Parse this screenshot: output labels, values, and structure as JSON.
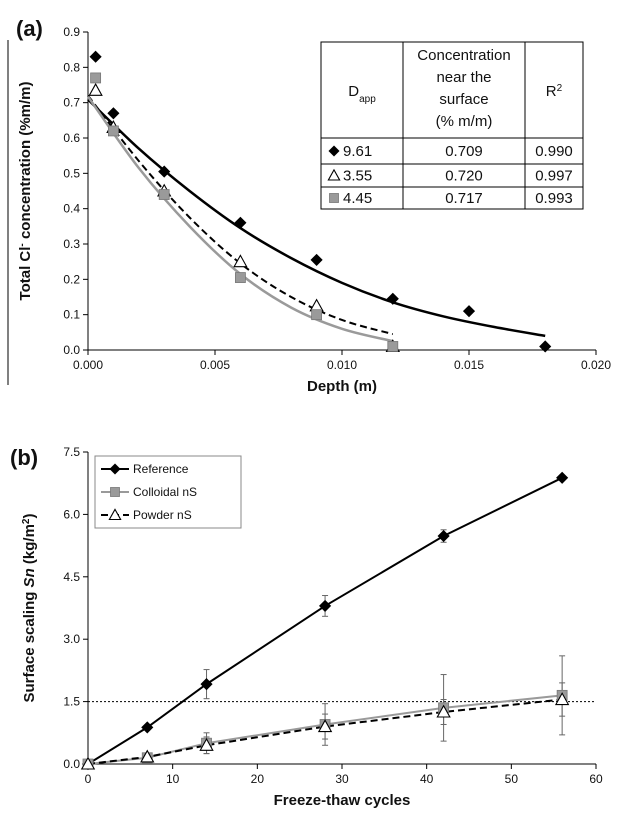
{
  "chart_data": [
    {
      "type": "scatter",
      "panel_label": "(a)",
      "xlabel": "Depth (m)",
      "ylabel": {
        "pre": "Total Cl",
        "sup": "-",
        "post": " concentration (%m/m)"
      },
      "xlim": [
        0,
        0.02
      ],
      "ylim": [
        0,
        0.9
      ],
      "xticks": [
        "0.000",
        "0.005",
        "0.010",
        "0.015",
        "0.020"
      ],
      "yticks": [
        "0.0",
        "0.1",
        "0.2",
        "0.3",
        "0.4",
        "0.5",
        "0.6",
        "0.7",
        "0.8",
        "0.9"
      ],
      "grid": false,
      "series": [
        {
          "marker": "diamond",
          "color": "#000000",
          "line_style": "solid",
          "line_width": 2.5,
          "x": [
            0.0003,
            0.001,
            0.003,
            0.006,
            0.009,
            0.012,
            0.015,
            0.018
          ],
          "y": [
            0.83,
            0.67,
            0.505,
            0.36,
            0.255,
            0.145,
            0.11,
            0.01
          ],
          "fit": {
            "x": [
              0,
              0.002,
              0.004,
              0.006,
              0.008,
              0.01,
              0.012,
              0.014,
              0.016,
              0.018
            ],
            "y": [
              0.709,
              0.57,
              0.45,
              0.345,
              0.26,
              0.19,
              0.135,
              0.095,
              0.065,
              0.04
            ]
          }
        },
        {
          "marker": "triangle",
          "color": "#000000",
          "line_style": "dashed",
          "line_width": 2,
          "x": [
            0.0003,
            0.001,
            0.003,
            0.006,
            0.009,
            0.012
          ],
          "y": [
            0.735,
            0.63,
            0.45,
            0.25,
            0.125,
            0.01
          ],
          "fit": {
            "x": [
              0,
              0.002,
              0.004,
              0.006,
              0.008,
              0.01,
              0.012
            ],
            "y": [
              0.72,
              0.535,
              0.375,
              0.245,
              0.15,
              0.085,
              0.045
            ]
          }
        },
        {
          "marker": "square",
          "color": "#9a9a9a",
          "line_style": "solid",
          "line_width": 2.5,
          "x": [
            0.0003,
            0.001,
            0.003,
            0.006,
            0.009,
            0.012
          ],
          "y": [
            0.77,
            0.62,
            0.44,
            0.205,
            0.1,
            0.01
          ],
          "fit": {
            "x": [
              0,
              0.002,
              0.004,
              0.006,
              0.008,
              0.01,
              0.012
            ],
            "y": [
              0.717,
              0.515,
              0.35,
              0.215,
              0.12,
              0.06,
              0.025
            ]
          }
        }
      ],
      "table": {
        "header": {
          "dapp_main": "D",
          "dapp_sub": "app",
          "conc": [
            "Concentration",
            "near the",
            "surface",
            "(% m/m)"
          ],
          "r2_main": "R",
          "r2_sup": "2"
        },
        "rows": [
          {
            "marker": "diamond",
            "marker_color": "#000000",
            "dapp": "9.61",
            "conc": "0.709",
            "r2": "0.990"
          },
          {
            "marker": "triangle",
            "marker_color": "#000000",
            "dapp": "3.55",
            "conc": "0.720",
            "r2": "0.997"
          },
          {
            "marker": "square",
            "marker_color": "#9a9a9a",
            "dapp": "4.45",
            "conc": "0.717",
            "r2": "0.993"
          }
        ]
      }
    },
    {
      "type": "line",
      "panel_label": "(b)",
      "xlabel": "Freeze-thaw cycles",
      "ylabel": {
        "pre": "Surface scaling ",
        "italic": "Sn",
        "post": " (kg/m",
        "sup": "2",
        "end": ")"
      },
      "xlim": [
        0,
        60
      ],
      "ylim": [
        0,
        7.5
      ],
      "xticks": [
        "0",
        "10",
        "20",
        "30",
        "40",
        "50",
        "60"
      ],
      "yticks": [
        "0.0",
        "1.5",
        "3.0",
        "4.5",
        "6.0",
        "7.5"
      ],
      "grid": false,
      "reference_line": {
        "y": 1.5,
        "style": "dotted"
      },
      "legend": {
        "position": "top-left"
      },
      "series": [
        {
          "name": "Reference",
          "marker": "diamond",
          "color": "#000000",
          "line_style": "solid",
          "line_width": 2,
          "x": [
            0,
            7,
            14,
            28,
            42,
            56
          ],
          "y": [
            0,
            0.88,
            1.92,
            3.8,
            5.48,
            6.88
          ],
          "err": [
            0,
            0.05,
            0.35,
            0.25,
            0.15,
            0.05
          ]
        },
        {
          "name": "Colloidal nS",
          "marker": "square",
          "color": "#9a9a9a",
          "line_style": "solid",
          "line_width": 2,
          "x": [
            0,
            7,
            14,
            28,
            42,
            56
          ],
          "y": [
            0,
            0.15,
            0.5,
            0.95,
            1.35,
            1.65
          ],
          "err": [
            0,
            0.05,
            0.25,
            0.5,
            0.8,
            0.95
          ]
        },
        {
          "name": "Powder nS",
          "marker": "triangle",
          "color": "#000000",
          "line_style": "dashed",
          "line_width": 2,
          "x": [
            0,
            7,
            14,
            28,
            42,
            56
          ],
          "y": [
            0,
            0.17,
            0.45,
            0.9,
            1.25,
            1.55
          ],
          "err": [
            0,
            0.05,
            0.2,
            0.3,
            0.3,
            0.4
          ]
        }
      ]
    }
  ]
}
